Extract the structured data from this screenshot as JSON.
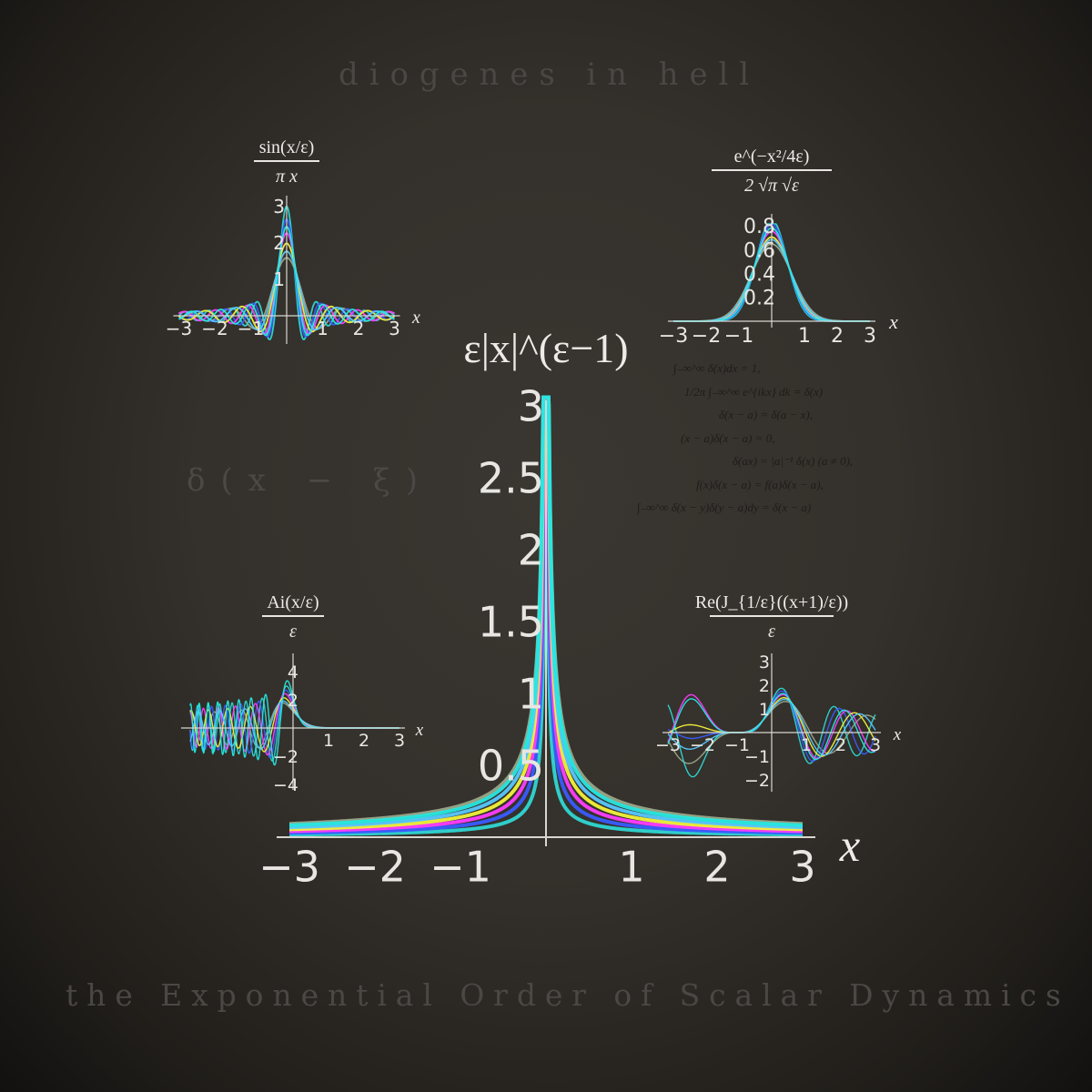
{
  "artist": "diogenes in hell",
  "album_title": "the Exponential Order of Scalar Dynamics",
  "background_text": "δ(x − ξ)",
  "equations": [
    "∫₋∞^∞ δ(x)dx = 1,",
    "1/2π ∫₋∞^∞ e^{ikx} dk = δ(x)",
    "δ(x − a) = δ(a − x),",
    "(x − a)δ(x − a) = 0,",
    "δ(ax) = |a|⁻¹ δ(x)   (a ≠ 0),",
    "f(x)δ(x − a) = f(a)δ(x − a),",
    "∫₋∞^∞ δ(x − y)δ(y − a)dy = δ(x − a)"
  ],
  "curve_colors": [
    "#9aa889",
    "#2fd7d3",
    "#3a5cff",
    "#ff3dff",
    "#f2f23a",
    "#58c8ff",
    "#26e8e0"
  ],
  "chart_data": [
    {
      "id": "main",
      "type": "line",
      "title": "ε|x|^(ε−1)",
      "xlabel": "x",
      "xlim": [
        -3,
        3
      ],
      "ylim": [
        0,
        3
      ],
      "xticks": [
        "−3",
        "−2",
        "−1",
        "1",
        "2",
        "3"
      ],
      "yticks": [
        "0.5",
        "1",
        "1.5",
        "2",
        "2.5",
        "3"
      ]
    },
    {
      "id": "sinc",
      "type": "line",
      "title_num": "sin(x/ε)",
      "title_den": "π x",
      "xlabel": "x",
      "xlim": [
        -3,
        3
      ],
      "ylim": [
        -1,
        3
      ],
      "xticks": [
        "−3",
        "−2",
        "−1",
        "1",
        "2",
        "3"
      ],
      "yticks": [
        "1",
        "2",
        "3"
      ]
    },
    {
      "id": "gauss",
      "type": "line",
      "title_num": "e^(−x²/4ε)",
      "title_den": "2 √π √ε",
      "xlabel": "x",
      "xlim": [
        -3,
        3
      ],
      "ylim": [
        0,
        0.8
      ],
      "xticks": [
        "−3",
        "−2",
        "−1",
        "1",
        "2",
        "3"
      ],
      "yticks": [
        "0.2",
        "0.4",
        "0.6",
        "0.8"
      ]
    },
    {
      "id": "airy",
      "type": "line",
      "title_num": "Ai(x/ε)",
      "title_den": "ε",
      "xlabel": "x",
      "xlim": [
        -3,
        3
      ],
      "ylim": [
        -4,
        4
      ],
      "xticks": [
        "1",
        "2",
        "3"
      ],
      "yticks": [
        "4",
        "2",
        "−2",
        "−4"
      ]
    },
    {
      "id": "bessel",
      "type": "line",
      "title_num": "Re(J_{1/ε}((x+1)/ε))",
      "title_den": "ε",
      "xlabel": "x",
      "xlim": [
        -3,
        3
      ],
      "ylim": [
        -2,
        3
      ],
      "xticks": [
        "−3",
        "−2",
        "−1",
        "1",
        "2",
        "3"
      ],
      "yticks": [
        "3",
        "2",
        "1",
        "−1",
        "−2"
      ]
    }
  ]
}
